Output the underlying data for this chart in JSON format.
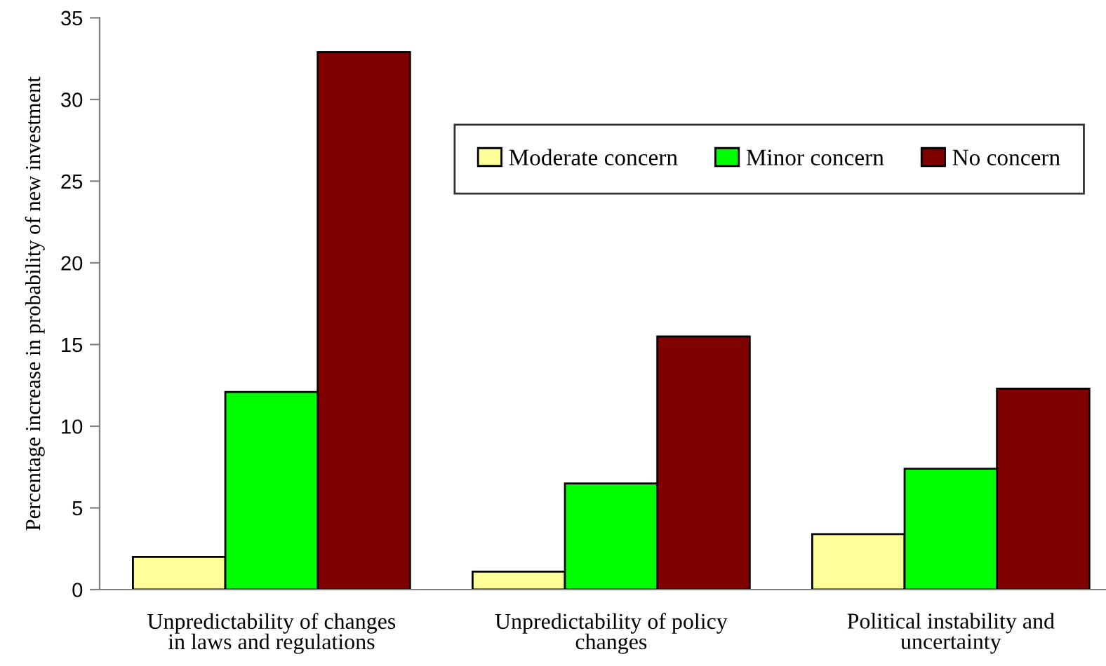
{
  "chart_data": {
    "type": "bar",
    "ylabel": "Percentage increase in probability of new investment",
    "categories": [
      "Unpredictability of changes\nin laws and regulations",
      "Unpredictability of policy\nchanges",
      "Political instability and\nuncertainty"
    ],
    "series": [
      {
        "name": "Moderate concern",
        "color": "#ffff99",
        "values": [
          2.0,
          1.1,
          3.4
        ]
      },
      {
        "name": "Minor concern",
        "color": "#00ff00",
        "values": [
          12.1,
          6.5,
          7.4
        ]
      },
      {
        "name": "No concern",
        "color": "#800000",
        "values": [
          32.9,
          15.5,
          12.3
        ]
      }
    ],
    "ylim": [
      0,
      35
    ],
    "yticks": [
      0,
      5,
      10,
      15,
      20,
      25,
      30,
      35
    ],
    "grid": false,
    "legend": "top right"
  }
}
